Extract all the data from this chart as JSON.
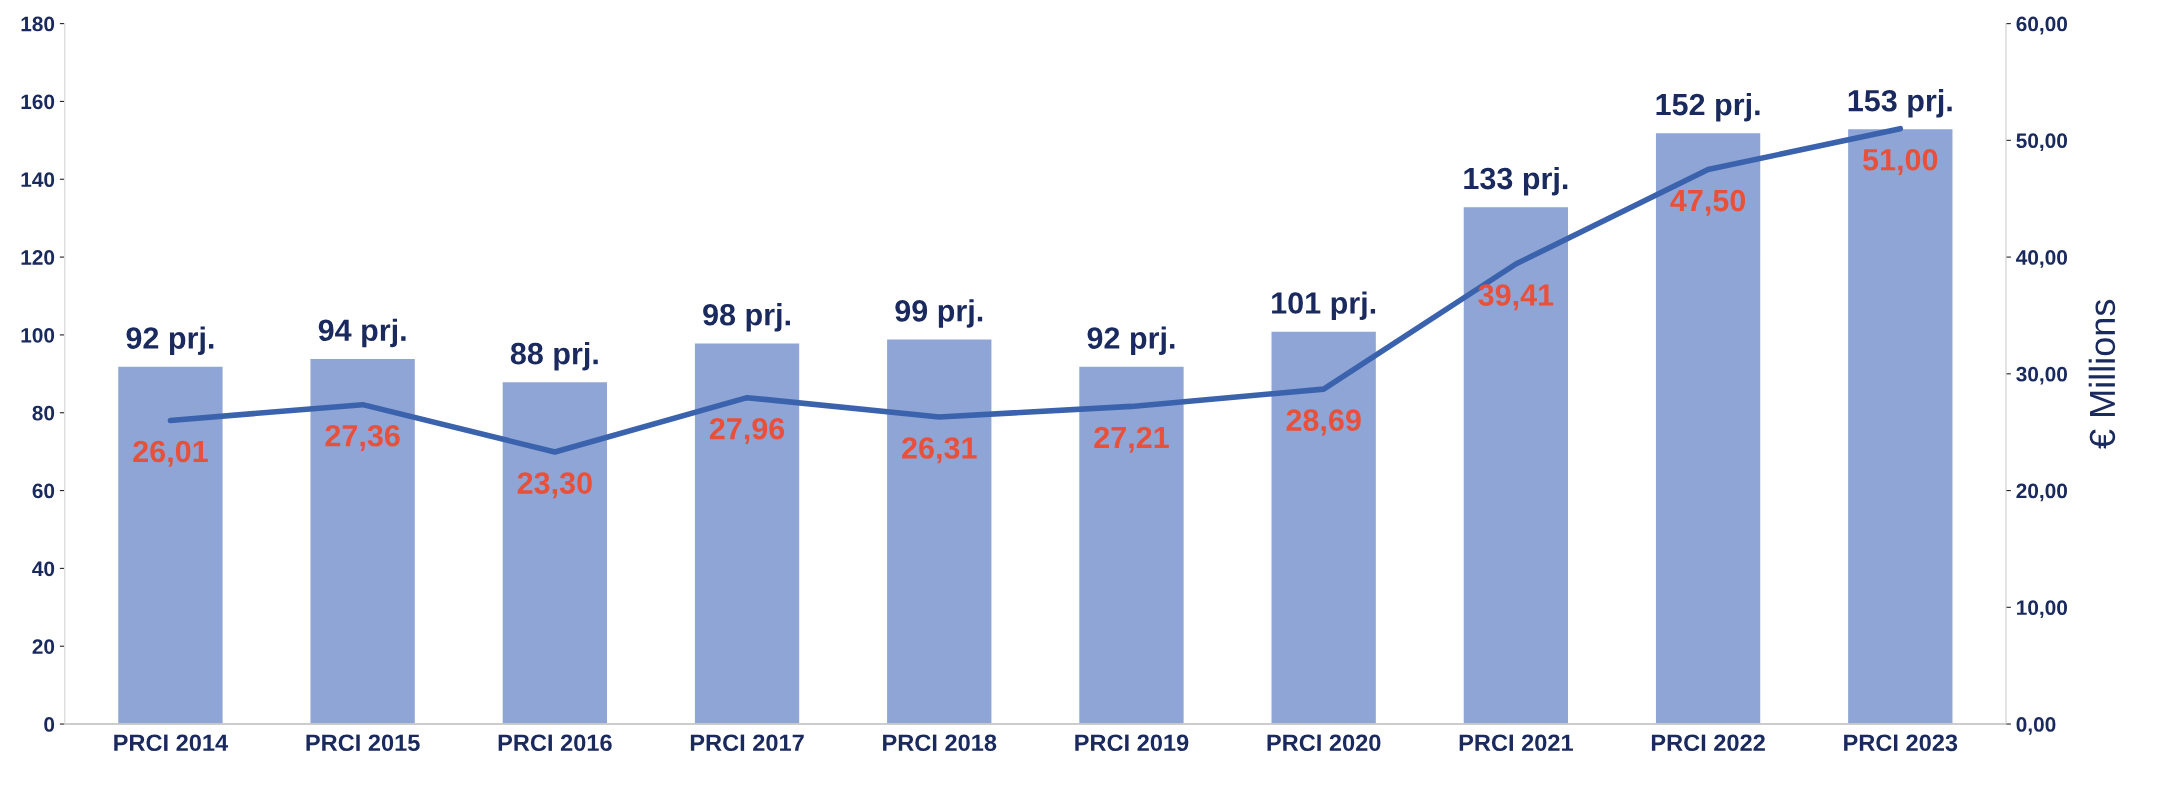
{
  "chart_data": {
    "type": "bar",
    "categories": [
      "PRCI 2014",
      "PRCI 2015",
      "PRCI 2016",
      "PRCI 2017",
      "PRCI 2018",
      "PRCI 2019",
      "PRCI 2020",
      "PRCI 2021",
      "PRCI 2022",
      "PRCI 2023"
    ],
    "series": [
      {
        "color": "#8fa5d6",
        "values": [
          92,
          94,
          88,
          98,
          99,
          92,
          101,
          133,
          152,
          153
        ],
        "value_labels": [
          "92 prj.",
          "94 prj.",
          "88 prj.",
          "98 prj.",
          "99 prj.",
          "92 prj.",
          "101 prj.",
          "133 prj.",
          "152 prj.",
          "153 prj."
        ]
      },
      {
        "type": "line",
        "axis": "y2",
        "color": "#3b63ad",
        "values": [
          26.01,
          27.36,
          23.3,
          27.96,
          26.31,
          27.21,
          28.69,
          39.41,
          47.5,
          51.0
        ],
        "value_labels": [
          "26,01",
          "27,36",
          "23,30",
          "27,96",
          "26,31",
          "27,21",
          "28,69",
          "39,41",
          "47,50",
          "51,00"
        ]
      }
    ],
    "ylim": [
      0,
      180
    ],
    "yticks": [
      0,
      20,
      40,
      60,
      80,
      100,
      120,
      140,
      160,
      180
    ],
    "y2lim": [
      0,
      60
    ],
    "y2ticks": [
      {
        "value": 0,
        "label": "0,00"
      },
      {
        "value": 10,
        "label": "10,00"
      },
      {
        "value": 20,
        "label": "20,00"
      },
      {
        "value": 30,
        "label": "30,00"
      },
      {
        "value": 40,
        "label": "40,00"
      },
      {
        "value": 50,
        "label": "50,00"
      },
      {
        "value": 60,
        "label": "60,00"
      }
    ],
    "y2label": "€ Millions",
    "grid": false,
    "marker": "none",
    "line_style": "solid"
  }
}
